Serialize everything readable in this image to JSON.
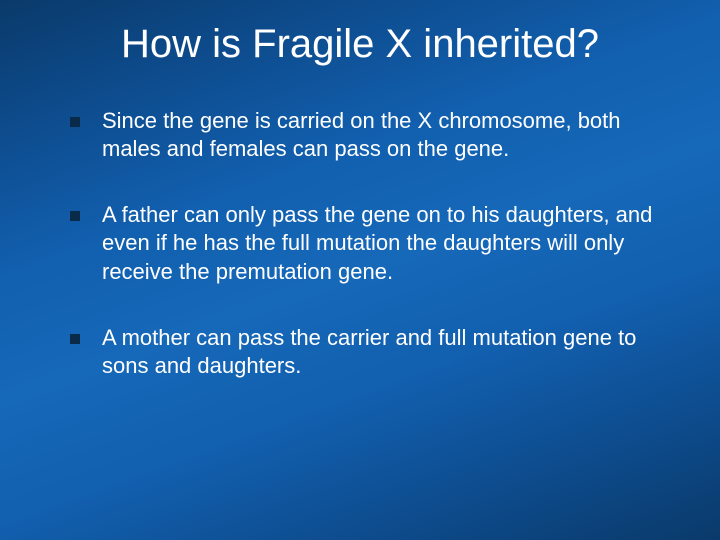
{
  "slide": {
    "title": "How is Fragile X inherited?",
    "title_fontsize": 40,
    "title_color": "#ffffff",
    "body_fontsize": 22,
    "body_color": "#ffffff",
    "bullet_color": "#0a2a4a",
    "background_gradient": [
      "#0a3a6a",
      "#0d4a8a",
      "#1260b0",
      "#1668b8",
      "#1260b0",
      "#0d4a8a",
      "#0a3a6a"
    ],
    "bullets": [
      "Since the gene is carried on the X chromosome, both males and females can pass on the gene.",
      "A father can only pass the gene on to his daughters, and even if he has the full mutation the daughters will only receive the premutation gene.",
      "A mother can pass the carrier and full mutation gene to sons and daughters."
    ]
  }
}
